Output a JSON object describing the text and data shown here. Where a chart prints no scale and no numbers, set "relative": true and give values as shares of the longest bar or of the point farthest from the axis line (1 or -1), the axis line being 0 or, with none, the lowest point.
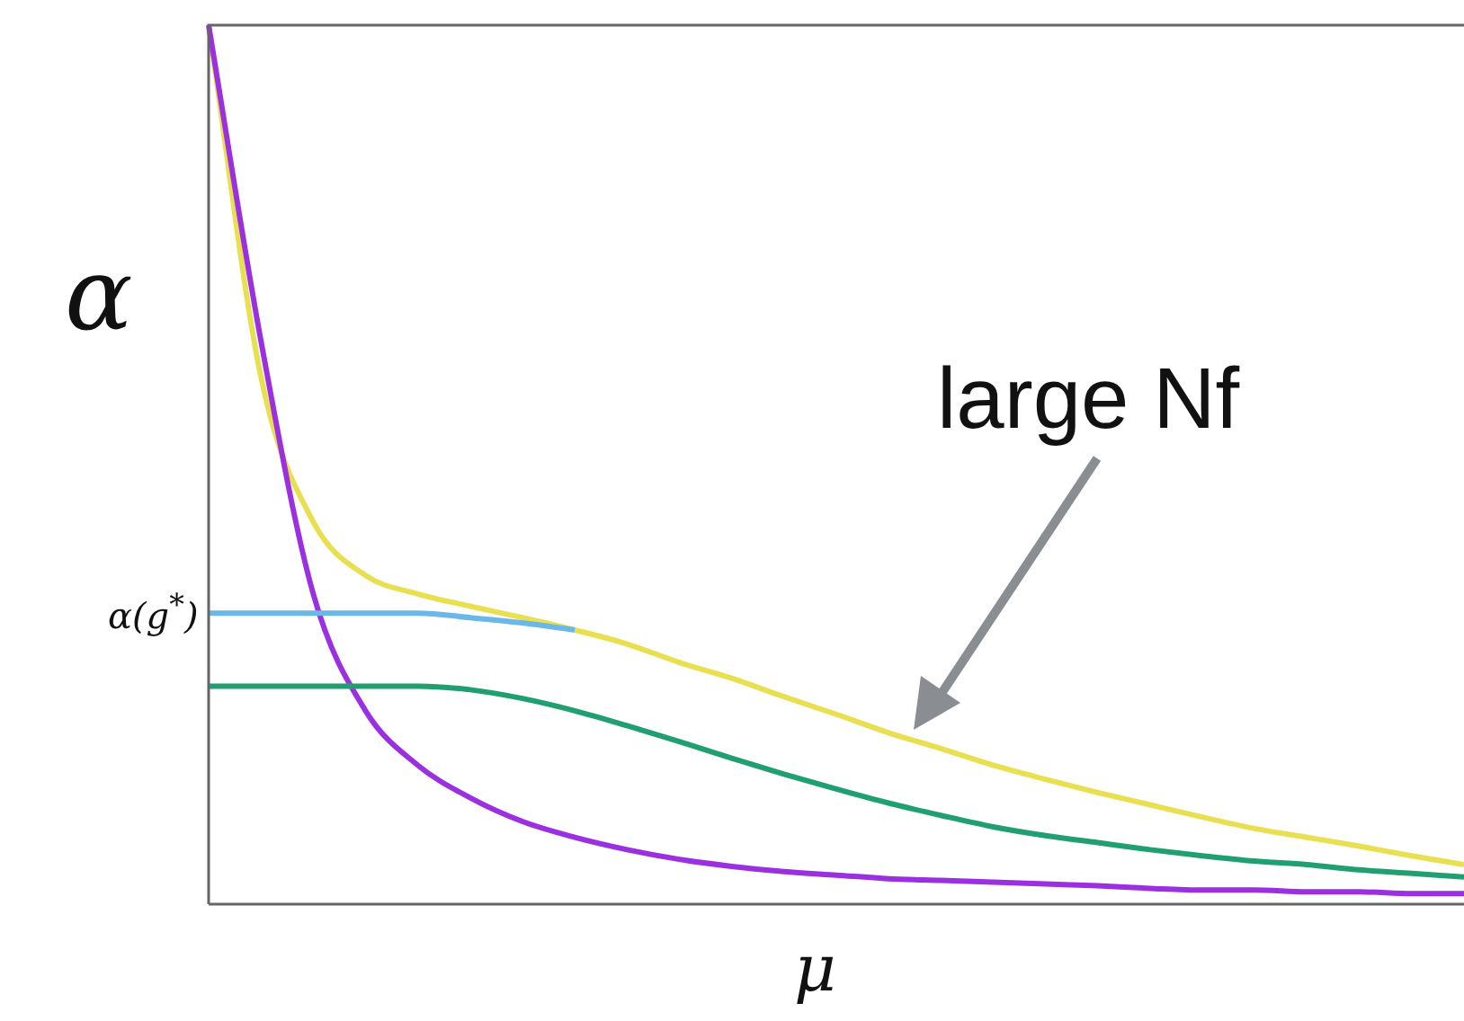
{
  "chart_data": {
    "type": "line",
    "relative": true,
    "xlabel": "μ",
    "ylabel": "α",
    "marker": "none",
    "categories": [
      null,
      null,
      null,
      null,
      null,
      null,
      null,
      null,
      null,
      null,
      null,
      null,
      null,
      null,
      null,
      null,
      null,
      null,
      null,
      null,
      null,
      null,
      null,
      null,
      null
    ],
    "series": [
      {
        "color": "#6ab8e8",
        "values": [
          0.331,
          0.331,
          0.331,
          0.331,
          0.331,
          0.326,
          0.32,
          0.312,
          null,
          null,
          null,
          null,
          null,
          null,
          null,
          null,
          null,
          null,
          null,
          null,
          null,
          null,
          null,
          null,
          null
        ]
      },
      {
        "color": "#20a070",
        "values": [
          0.248,
          0.248,
          0.248,
          0.248,
          0.248,
          0.244,
          0.234,
          0.22,
          0.203,
          0.185,
          0.166,
          0.148,
          0.131,
          0.115,
          0.101,
          0.088,
          0.078,
          0.07,
          0.062,
          0.055,
          0.049,
          0.045,
          0.039,
          0.035,
          0.031
        ]
      },
      {
        "color": "#9b30e0",
        "values": [
          1.0,
          0.641,
          0.353,
          0.22,
          0.158,
          0.121,
          0.094,
          0.076,
          0.062,
          0.051,
          0.043,
          0.037,
          0.033,
          0.029,
          0.027,
          0.025,
          0.023,
          0.021,
          0.018,
          0.016,
          0.016,
          0.014,
          0.014,
          0.012,
          0.012
        ]
      },
      {
        "color": "#e8e050",
        "values": [
          1.0,
          0.6,
          0.435,
          0.374,
          0.353,
          0.339,
          0.326,
          0.312,
          0.296,
          0.275,
          0.257,
          0.236,
          0.216,
          0.195,
          0.177,
          0.158,
          0.142,
          0.127,
          0.113,
          0.099,
          0.086,
          0.076,
          0.066,
          0.055,
          0.045
        ]
      }
    ],
    "annotations": [
      "α(g$^{*}$)",
      "large Nf"
    ]
  }
}
